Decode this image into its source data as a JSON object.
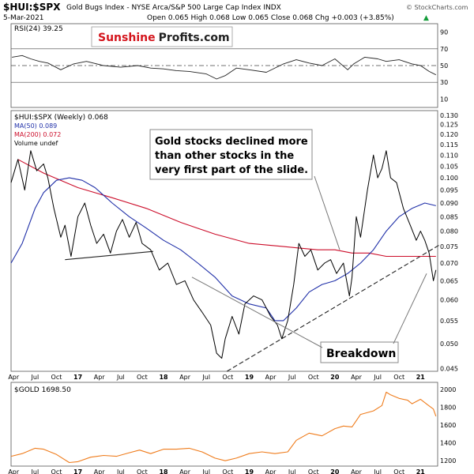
{
  "header": {
    "symbol": "$HUI:$SPX",
    "description": "Gold Bugs Index - NYSE Arca/S&P 500 Large Cap Index  INDX",
    "date": "5-Mar-2021",
    "ohlc": "Open 0.065  High 0.068  Low 0.065  Close 0.068  Chg +0.003 (+3.85%)",
    "ohlc_arrow": "▲",
    "watermark": "© StockCharts.com"
  },
  "logo": {
    "part1": "Sunshine",
    "part2": "Profits.com"
  },
  "colors": {
    "price": "#000000",
    "ma50": "#1f2fa8",
    "ma200": "#cc0d2a",
    "gold": "#ef7c1c",
    "up_arrow": "#139c3a",
    "logo_red": "#d4141c",
    "annotation_line": "#777777"
  },
  "annotations": {
    "callout": [
      "Gold stocks declined more",
      "than other stocks in the",
      "very first part of the slide."
    ],
    "breakdown": "Breakdown"
  },
  "chart_data": [
    {
      "type": "line",
      "panel": "rsi",
      "title": "RSI(24) 39.25",
      "yticks": [
        90,
        70,
        50,
        30,
        10
      ],
      "ylim": [
        0,
        100
      ],
      "reference_lines": [
        70,
        50,
        30
      ],
      "xlim": [
        2016.22,
        2021.2
      ],
      "series": [
        {
          "name": "RSI(24)",
          "x": [
            2016.23,
            2016.35,
            2016.45,
            2016.55,
            2016.65,
            2016.8,
            2016.95,
            2017.1,
            2017.3,
            2017.5,
            2017.7,
            2017.85,
            2018.0,
            2018.15,
            2018.3,
            2018.5,
            2018.62,
            2018.72,
            2018.85,
            2019.0,
            2019.2,
            2019.4,
            2019.55,
            2019.7,
            2019.85,
            2020.0,
            2020.15,
            2020.22,
            2020.35,
            2020.5,
            2020.6,
            2020.75,
            2020.9,
            2021.0,
            2021.1,
            2021.18
          ],
          "values": [
            60,
            62,
            58,
            55,
            53,
            45,
            52,
            55,
            50,
            48,
            50,
            47,
            46,
            44,
            43,
            40,
            34,
            38,
            47,
            45,
            42,
            52,
            57,
            53,
            50,
            58,
            45,
            52,
            60,
            58,
            55,
            57,
            52,
            50,
            43,
            39
          ]
        }
      ]
    },
    {
      "type": "line",
      "panel": "price",
      "series_labels": [
        "$HUI:$SPX (Weekly) 0.068",
        "MA(50) 0.089",
        "MA(200) 0.072",
        "Volume undef"
      ],
      "yticks": [
        0.13,
        0.125,
        0.12,
        0.115,
        0.11,
        0.105,
        0.1,
        0.095,
        0.09,
        0.085,
        0.08,
        0.075,
        0.07,
        0.065,
        0.06,
        0.055,
        0.05,
        0.045
      ],
      "ytick_labels": [
        "0.130",
        "0.125",
        "0.120",
        "0.115",
        "0.110",
        "0.105",
        "0.100",
        "0.095",
        "0.090",
        "0.085",
        "0.080",
        "0.075",
        "0.070",
        "0.065",
        "0.060",
        "0.055",
        "0.050",
        "0.045"
      ],
      "ylim": [
        0.0445,
        0.1325
      ],
      "log_scale": true,
      "xlim": [
        2016.22,
        2021.2
      ],
      "series": [
        {
          "name": "$HUI:$SPX (Weekly)",
          "x": [
            2016.22,
            2016.3,
            2016.38,
            2016.45,
            2016.52,
            2016.6,
            2016.65,
            2016.72,
            2016.8,
            2016.85,
            2016.92,
            2017.0,
            2017.08,
            2017.15,
            2017.22,
            2017.3,
            2017.38,
            2017.45,
            2017.52,
            2017.6,
            2017.68,
            2017.75,
            2017.85,
            2017.95,
            2018.05,
            2018.15,
            2018.25,
            2018.35,
            2018.45,
            2018.55,
            2018.62,
            2018.68,
            2018.72,
            2018.8,
            2018.88,
            2018.95,
            2019.05,
            2019.15,
            2019.25,
            2019.33,
            2019.38,
            2019.45,
            2019.52,
            2019.58,
            2019.65,
            2019.72,
            2019.8,
            2019.88,
            2019.95,
            2020.02,
            2020.1,
            2020.17,
            2020.2,
            2020.25,
            2020.3,
            2020.38,
            2020.45,
            2020.5,
            2020.55,
            2020.6,
            2020.65,
            2020.72,
            2020.8,
            2020.88,
            2020.95,
            2021.0,
            2021.05,
            2021.1,
            2021.15,
            2021.18
          ],
          "values": [
            0.098,
            0.108,
            0.095,
            0.112,
            0.103,
            0.106,
            0.1,
            0.088,
            0.078,
            0.082,
            0.072,
            0.085,
            0.09,
            0.082,
            0.076,
            0.079,
            0.073,
            0.08,
            0.084,
            0.078,
            0.083,
            0.076,
            0.074,
            0.068,
            0.07,
            0.064,
            0.065,
            0.06,
            0.057,
            0.054,
            0.048,
            0.047,
            0.051,
            0.056,
            0.052,
            0.059,
            0.061,
            0.06,
            0.056,
            0.054,
            0.051,
            0.055,
            0.064,
            0.076,
            0.072,
            0.074,
            0.068,
            0.07,
            0.071,
            0.067,
            0.07,
            0.061,
            0.066,
            0.085,
            0.078,
            0.095,
            0.11,
            0.1,
            0.104,
            0.112,
            0.1,
            0.098,
            0.088,
            0.082,
            0.077,
            0.08,
            0.077,
            0.073,
            0.065,
            0.068
          ]
        },
        {
          "name": "MA(50)",
          "x": [
            2016.22,
            2016.35,
            2016.5,
            2016.6,
            2016.75,
            2016.9,
            2017.05,
            2017.2,
            2017.4,
            2017.6,
            2017.8,
            2018.0,
            2018.2,
            2018.4,
            2018.6,
            2018.8,
            2019.0,
            2019.2,
            2019.3,
            2019.4,
            2019.55,
            2019.7,
            2019.85,
            2020.0,
            2020.15,
            2020.3,
            2020.45,
            2020.6,
            2020.75,
            2020.9,
            2021.05,
            2021.18
          ],
          "values": [
            0.07,
            0.076,
            0.088,
            0.094,
            0.099,
            0.1,
            0.099,
            0.096,
            0.09,
            0.085,
            0.081,
            0.077,
            0.074,
            0.07,
            0.066,
            0.061,
            0.059,
            0.058,
            0.055,
            0.055,
            0.058,
            0.062,
            0.064,
            0.065,
            0.067,
            0.07,
            0.074,
            0.08,
            0.085,
            0.088,
            0.09,
            0.089
          ]
        },
        {
          "name": "MA(200)",
          "x": [
            2016.3,
            2016.6,
            2017.0,
            2017.4,
            2017.8,
            2018.2,
            2018.6,
            2019.0,
            2019.4,
            2019.8,
            2020.0,
            2020.2,
            2020.4,
            2020.6,
            2020.8,
            2021.0,
            2021.18
          ],
          "values": [
            0.108,
            0.102,
            0.096,
            0.092,
            0.088,
            0.083,
            0.079,
            0.076,
            0.075,
            0.074,
            0.074,
            0.073,
            0.073,
            0.072,
            0.072,
            0.072,
            0.072
          ]
        }
      ],
      "trendlines": [
        {
          "x": [
            2016.85,
            2017.88
          ],
          "values": [
            0.071,
            0.0735
          ],
          "style": "solid"
        },
        {
          "x": [
            2018.74,
            2021.22
          ],
          "values": [
            0.0445,
            0.0755
          ],
          "style": "dashed"
        }
      ]
    },
    {
      "type": "line",
      "panel": "gold",
      "series_labels": [
        "$GOLD 1698.50"
      ],
      "yticks": [
        2000,
        1800,
        1600,
        1400,
        1200
      ],
      "ylim": [
        1140,
        2080
      ],
      "xlim": [
        2016.22,
        2021.2
      ],
      "xticks": [
        "Apr",
        "Jul",
        "Oct",
        "17",
        "Apr",
        "Jul",
        "Oct",
        "18",
        "Apr",
        "Jul",
        "Oct",
        "19",
        "Apr",
        "Jul",
        "Oct",
        "20",
        "Apr",
        "Jul",
        "Oct",
        "21"
      ],
      "series": [
        {
          "name": "$GOLD",
          "x": [
            2016.22,
            2016.35,
            2016.5,
            2016.6,
            2016.75,
            2016.9,
            2017.0,
            2017.15,
            2017.3,
            2017.45,
            2017.6,
            2017.72,
            2017.85,
            2018.0,
            2018.15,
            2018.3,
            2018.45,
            2018.6,
            2018.72,
            2018.85,
            2019.0,
            2019.15,
            2019.3,
            2019.45,
            2019.55,
            2019.7,
            2019.85,
            2020.0,
            2020.1,
            2020.2,
            2020.3,
            2020.45,
            2020.55,
            2020.6,
            2020.65,
            2020.75,
            2020.85,
            2020.9,
            2021.0,
            2021.08,
            2021.15,
            2021.18
          ],
          "values": [
            1250,
            1280,
            1340,
            1330,
            1270,
            1180,
            1190,
            1240,
            1260,
            1250,
            1290,
            1320,
            1280,
            1330,
            1330,
            1340,
            1300,
            1230,
            1200,
            1230,
            1280,
            1300,
            1280,
            1300,
            1430,
            1510,
            1480,
            1560,
            1590,
            1580,
            1720,
            1760,
            1820,
            1970,
            1940,
            1900,
            1880,
            1840,
            1890,
            1830,
            1780,
            1700
          ]
        }
      ]
    }
  ]
}
